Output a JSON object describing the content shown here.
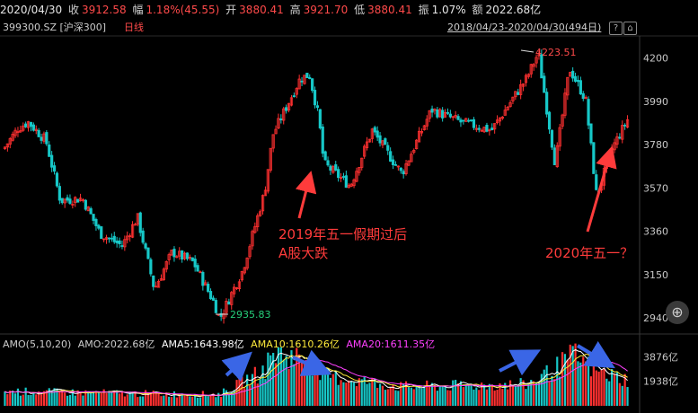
{
  "header": {
    "date": "2020/04/30",
    "close_label": "收",
    "close_value": "3912.58",
    "change_label": "幅",
    "change_value": "1.18%(45.55)",
    "open_label": "开",
    "open_value": "3880.41",
    "high_label": "高",
    "high_value": "3921.70",
    "low_label": "低",
    "low_value": "3880.41",
    "amplitude_label": "振",
    "amplitude_value": "1.07%",
    "amount_label": "额",
    "amount_value": "2022.68亿"
  },
  "subheader": {
    "code": "399300.SZ [沪深300]",
    "period": "日线",
    "range": "2018/04/23-2020/04/30(494日)",
    "icons": [
      "help-icon",
      "lock-icon"
    ]
  },
  "volume_legend": {
    "amo_params": "AMO(5,10,20)",
    "amo": "AMO:2022.68亿",
    "ama5": "AMA5:1643.98亿",
    "ama10": "AMA10:1610.26亿",
    "ama20": "AMA20:1611.35亿"
  },
  "colors": {
    "up": "#ff3030",
    "down": "#17c8c8",
    "ama5": "#ffffff",
    "ama10": "#ffeb3b",
    "ama20": "#ff40ff",
    "annotation": "#ff3b3b",
    "arrow": "#3a66e6"
  },
  "annotations": {
    "note1_line1": "2019年五一假期过后",
    "note1_line2": "A股大跌",
    "note2": "2020年五一？",
    "high_marker": "4223.51",
    "low_marker": "2935.83"
  },
  "zoom_button": "⊕",
  "chart_data": [
    {
      "type": "candlestick",
      "title": "399300.SZ 沪深300 日线",
      "x_range": [
        "2018/04/23",
        "2020/04/30"
      ],
      "ylim": [
        2880,
        4290
      ],
      "y_ticks": [
        2940,
        3150,
        3360,
        3570,
        3780,
        3990,
        4200
      ],
      "close_path": [
        {
          "date": "2018/04/23",
          "close": 3760
        },
        {
          "date": "2018/05/10",
          "close": 3860
        },
        {
          "date": "2018/05/22",
          "close": 3890
        },
        {
          "date": "2018/06/12",
          "close": 3800
        },
        {
          "date": "2018/06/29",
          "close": 3510
        },
        {
          "date": "2018/07/25",
          "close": 3520
        },
        {
          "date": "2018/08/15",
          "close": 3350
        },
        {
          "date": "2018/09/10",
          "close": 3290
        },
        {
          "date": "2018/09/28",
          "close": 3430
        },
        {
          "date": "2018/10/18",
          "close": 3080
        },
        {
          "date": "2018/11/08",
          "close": 3260
        },
        {
          "date": "2018/12/03",
          "close": 3210
        },
        {
          "date": "2018/12/28",
          "close": 3010
        },
        {
          "date": "2019/01/03",
          "close": 2935.83
        },
        {
          "date": "2019/01/30",
          "close": 3170
        },
        {
          "date": "2019/02/25",
          "close": 3550
        },
        {
          "date": "2019/03/07",
          "close": 3830
        },
        {
          "date": "2019/04/08",
          "close": 4100
        },
        {
          "date": "2019/04/19",
          "close": 4120
        },
        {
          "date": "2019/04/30",
          "close": 3910
        },
        {
          "date": "2019/05/06",
          "close": 3690
        },
        {
          "date": "2019/06/06",
          "close": 3580
        },
        {
          "date": "2019/07/02",
          "close": 3850
        },
        {
          "date": "2019/08/06",
          "close": 3640
        },
        {
          "date": "2019/09/10",
          "close": 3950
        },
        {
          "date": "2019/10/15",
          "close": 3890
        },
        {
          "date": "2019/11/20",
          "close": 3850
        },
        {
          "date": "2019/12/31",
          "close": 4100
        },
        {
          "date": "2020/01/14",
          "close": 4223.51
        },
        {
          "date": "2020/02/03",
          "close": 3690
        },
        {
          "date": "2020/02/20",
          "close": 4150
        },
        {
          "date": "2020/03/10",
          "close": 4000
        },
        {
          "date": "2020/03/23",
          "close": 3530
        },
        {
          "date": "2020/04/10",
          "close": 3760
        },
        {
          "date": "2020/04/30",
          "close": 3912.58
        }
      ]
    },
    {
      "type": "bar",
      "title": "AMO(5,10,20)",
      "y_ticks_label": [
        "3876亿",
        "1938亿"
      ],
      "y_ticks": [
        3876,
        1938
      ],
      "amount_path": [
        {
          "date": "2018/04/23",
          "amount": 1150
        },
        {
          "date": "2018/10/18",
          "amount": 950
        },
        {
          "date": "2019/01/03",
          "amount": 900
        },
        {
          "date": "2019/02/25",
          "amount": 2800
        },
        {
          "date": "2019/03/07",
          "amount": 4200
        },
        {
          "date": "2019/04/19",
          "amount": 3600
        },
        {
          "date": "2019/05/06",
          "amount": 2400
        },
        {
          "date": "2019/08/06",
          "amount": 1500
        },
        {
          "date": "2019/12/31",
          "amount": 1700
        },
        {
          "date": "2020/02/03",
          "amount": 2900
        },
        {
          "date": "2020/02/25",
          "amount": 4000
        },
        {
          "date": "2020/03/23",
          "amount": 2700
        },
        {
          "date": "2020/04/30",
          "amount": 2022.68
        }
      ]
    }
  ]
}
